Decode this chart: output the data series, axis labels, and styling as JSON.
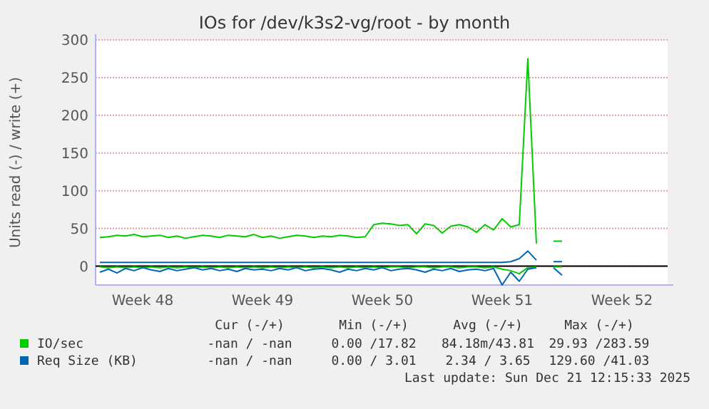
{
  "chart_data": {
    "type": "line",
    "title": "IOs for /dev/k3s2-vg/root - by month",
    "ylabel": "Units read (-) / write (+)",
    "categories": [
      null,
      null,
      null,
      null,
      null,
      "Week 48",
      null,
      null,
      null,
      null,
      null,
      null,
      null,
      null,
      null,
      null,
      null,
      null,
      null,
      "Week 49",
      null,
      null,
      null,
      null,
      null,
      null,
      null,
      null,
      null,
      null,
      null,
      null,
      null,
      "Week 50",
      null,
      null,
      null,
      null,
      null,
      null,
      null,
      null,
      null,
      null,
      null,
      null,
      null,
      "Week 51",
      null,
      null,
      null,
      null,
      null,
      null,
      null,
      null,
      null,
      null,
      null,
      null,
      null,
      "Week 52",
      null,
      null,
      null,
      null,
      null
    ],
    "series": [
      {
        "name": "IO/sec",
        "color": "#00cc00",
        "values": [
          38,
          39,
          41,
          40,
          42,
          39,
          40,
          41,
          38,
          40,
          37,
          39,
          41,
          40,
          38,
          41,
          40,
          39,
          42,
          38,
          40,
          37,
          39,
          41,
          40,
          38,
          40,
          39,
          41,
          40,
          38,
          39,
          55,
          57,
          56,
          54,
          55,
          43,
          56,
          54,
          44,
          53,
          55,
          52,
          45,
          55,
          48,
          63,
          52,
          55,
          275,
          30,
          null,
          33,
          33,
          null,
          null,
          null,
          null,
          null,
          null,
          null,
          null,
          null,
          null,
          null,
          null
        ]
      },
      {
        "color": "#00cc00",
        "values": [
          -1,
          -2,
          -1,
          -2,
          -1,
          -2,
          -1,
          -2,
          -1,
          -2,
          -1,
          -2,
          -1,
          -2,
          -1,
          -2,
          -1,
          -2,
          -1,
          -2,
          -1,
          -2,
          -1,
          -2,
          -1,
          -2,
          -1,
          -2,
          -1,
          -2,
          -1,
          -2,
          -1,
          -2,
          -1,
          -1,
          -2,
          -1,
          -1,
          -2,
          -1,
          -1,
          -2,
          -1,
          -1,
          -2,
          -1,
          -4,
          -6,
          -10,
          -2,
          -1,
          null,
          -1,
          -1,
          null,
          null,
          null,
          null,
          null,
          null,
          null,
          null,
          null,
          null,
          null,
          null
        ]
      },
      {
        "name": "Req Size (KB)",
        "color": "#0066b3",
        "values": [
          5,
          5,
          5,
          5,
          5,
          5,
          5,
          5,
          5,
          5,
          5,
          5,
          5,
          5,
          5,
          5,
          5,
          5,
          5,
          5,
          5,
          5,
          5,
          5,
          5,
          5,
          5,
          5,
          5,
          5,
          5,
          5,
          5,
          5,
          5,
          5,
          5,
          5,
          5,
          5,
          5,
          5,
          5,
          5,
          5,
          5,
          5,
          5,
          6,
          10,
          20,
          8,
          null,
          6,
          6,
          null,
          null,
          null,
          null,
          null,
          null,
          null,
          null,
          null,
          null,
          null,
          null
        ]
      },
      {
        "color": "#0066b3",
        "values": [
          -8,
          -4,
          -9,
          -3,
          -6,
          -2,
          -5,
          -7,
          -3,
          -6,
          -4,
          -2,
          -5,
          -3,
          -6,
          -4,
          -7,
          -3,
          -5,
          -4,
          -6,
          -3,
          -5,
          -2,
          -6,
          -4,
          -3,
          -5,
          -8,
          -4,
          -6,
          -3,
          -5,
          -2,
          -6,
          -4,
          -3,
          -5,
          -8,
          -4,
          -6,
          -3,
          -7,
          -5,
          -4,
          -6,
          -3,
          -25,
          -8,
          -20,
          -4,
          -2,
          null,
          -2,
          -12,
          null,
          null,
          null,
          null,
          null,
          null,
          null,
          null,
          null,
          null,
          null,
          null
        ]
      }
    ],
    "ylim": [
      -25,
      300
    ],
    "yticks": [
      0,
      50,
      100,
      150,
      200,
      250,
      300
    ],
    "grid": "y",
    "legend": "bottom",
    "line_style": "solid",
    "annotations": [
      "Cur (-/+)",
      "Min (-/+)",
      "Avg (-/+)",
      "Max (-/+)",
      "-nan / -nan",
      "0.00 /17.82",
      "84.18m/43.81",
      "29.93 /283.59",
      "-nan / -nan",
      "0.00 / 3.01",
      "2.34 / 3.65",
      "129.60 /41.03",
      "Last update: Sun Dec 21 12:15:33 2025"
    ]
  }
}
